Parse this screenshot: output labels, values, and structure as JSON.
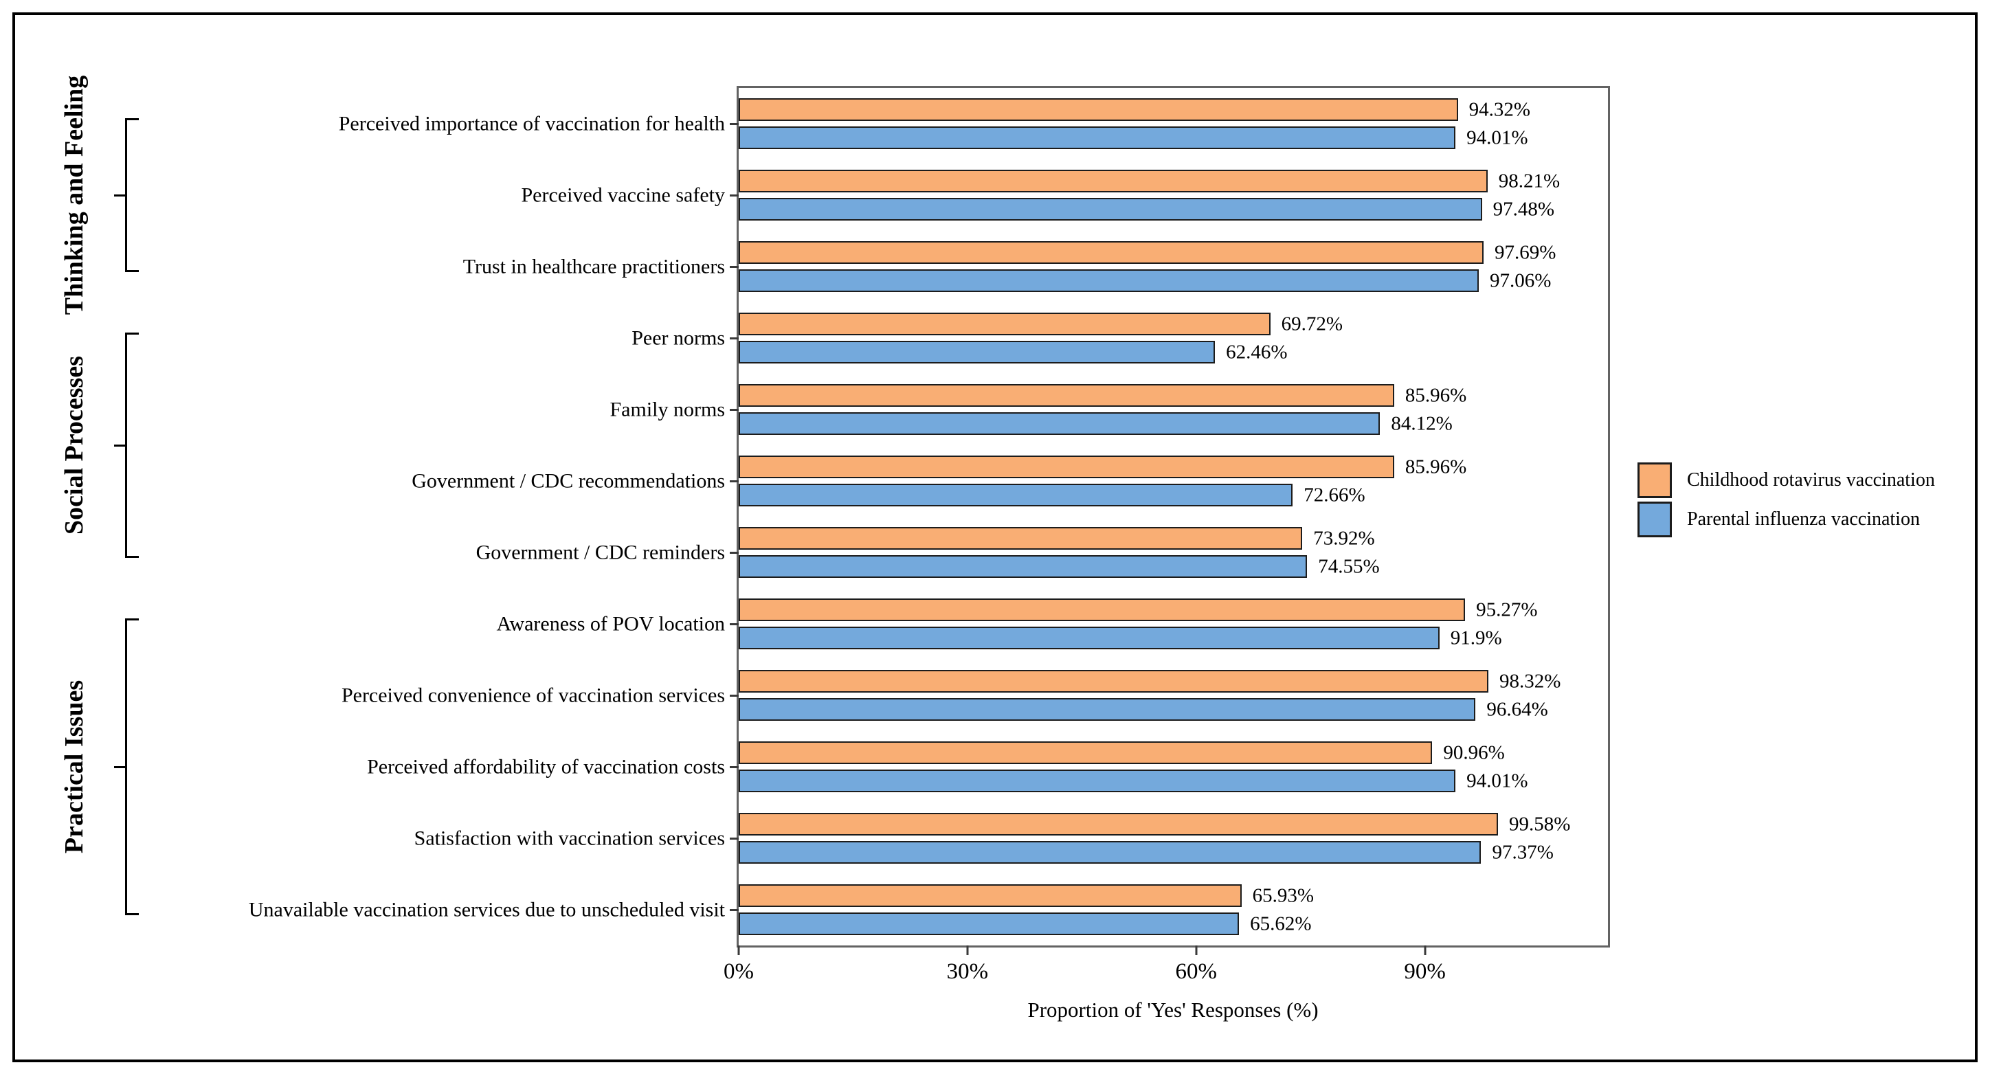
{
  "figure": {
    "xlabel": "Proportion of 'Yes' Responses (%)"
  },
  "chart_data": {
    "type": "bar",
    "orientation": "horizontal",
    "title": "",
    "xlabel": "Proportion of 'Yes' Responses (%)",
    "ylabel": "",
    "xlim": [
      0,
      114
    ],
    "grid": false,
    "legend_position": "right-outside",
    "x_ticks": [
      {
        "value": 0,
        "label": "0%"
      },
      {
        "value": 30,
        "label": "30%"
      },
      {
        "value": 60,
        "label": "60%"
      },
      {
        "value": 90,
        "label": "90%"
      }
    ],
    "categories": [
      "Perceived importance of vaccination for health",
      "Perceived vaccine safety",
      "Trust in healthcare practitioners",
      "Peer norms",
      "Family norms",
      "Government / CDC recommendations",
      "Government / CDC reminders",
      "Awareness of POV location",
      "Perceived convenience of vaccination services",
      "Perceived affordability of vaccination costs",
      "Satisfaction with vaccination services",
      "Unavailable vaccination services due to unscheduled visit"
    ],
    "category_groups": [
      {
        "label": "Thinking and Feeling",
        "start_index": 0,
        "end_index": 2
      },
      {
        "label": "Social Processes",
        "start_index": 3,
        "end_index": 6
      },
      {
        "label": "Practical Issues",
        "start_index": 7,
        "end_index": 11
      }
    ],
    "series": [
      {
        "name": "Childhood rotavirus vaccination",
        "color": "#F9AE74",
        "values": [
          94.32,
          98.21,
          97.69,
          69.72,
          85.96,
          85.96,
          73.92,
          95.27,
          98.32,
          90.96,
          99.58,
          65.93
        ],
        "value_labels": [
          "94.32%",
          "98.21%",
          "97.69%",
          "69.72%",
          "85.96%",
          "85.96%",
          "73.92%",
          "95.27%",
          "98.32%",
          "90.96%",
          "99.58%",
          "65.93%"
        ]
      },
      {
        "name": "Parental influenza vaccination",
        "color": "#74A9DC",
        "values": [
          94.01,
          97.48,
          97.06,
          62.46,
          84.12,
          72.66,
          74.55,
          91.9,
          96.64,
          94.01,
          97.37,
          65.62
        ],
        "value_labels": [
          "94.01%",
          "97.48%",
          "97.06%",
          "62.46%",
          "84.12%",
          "72.66%",
          "74.55%",
          "91.9%",
          "96.64%",
          "94.01%",
          "97.37%",
          "65.62%"
        ]
      }
    ]
  }
}
